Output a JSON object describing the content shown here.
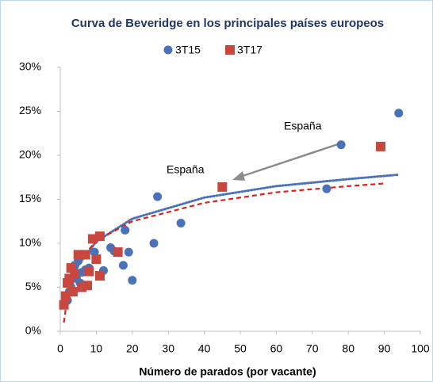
{
  "chart_data": {
    "type": "scatter",
    "title": "Curva de Beveridge en los principales países europeos",
    "x_label": "Número de parados (por vacante)",
    "xlim": [
      0,
      100
    ],
    "xticks": [
      0,
      10,
      20,
      30,
      40,
      50,
      60,
      70,
      80,
      90,
      100
    ],
    "ylim": [
      0,
      30
    ],
    "yticks": [
      {
        "value": 0,
        "label": "0%"
      },
      {
        "value": 5,
        "label": "5%"
      },
      {
        "value": 10,
        "label": "10%"
      },
      {
        "value": 15,
        "label": "15%"
      },
      {
        "value": 20,
        "label": "20%"
      },
      {
        "value": 25,
        "label": "25%"
      },
      {
        "value": 30,
        "label": "30%"
      }
    ],
    "legend": "top",
    "series": [
      {
        "name": "3T15",
        "color": "#4a72b8",
        "marker": "circle",
        "x": [
          94,
          78,
          74,
          27,
          33.5,
          26,
          18,
          19,
          17.5,
          20,
          14,
          15,
          12,
          9.5,
          7,
          6,
          5,
          4,
          4.5,
          3,
          2.5,
          2,
          5.5,
          8
        ],
        "values": [
          24.8,
          21.2,
          16.2,
          15.3,
          12.3,
          10,
          11.5,
          9,
          7.5,
          5.8,
          9.5,
          9.1,
          6.9,
          9,
          7,
          6.7,
          8,
          7.5,
          6,
          5,
          4.5,
          3.5,
          5.5,
          7.2
        ]
      },
      {
        "name": "3T17",
        "color": "#c8473e",
        "marker": "square",
        "x": [
          89,
          45,
          16,
          11,
          9,
          10,
          8,
          11,
          7,
          5,
          3,
          4,
          6,
          7.5,
          2,
          1.5,
          1,
          2.5,
          3.5
        ],
        "values": [
          21,
          16.4,
          9,
          10.8,
          10.5,
          8.2,
          6.8,
          6.3,
          8.7,
          8.7,
          7.2,
          6.5,
          5,
          5.2,
          5.5,
          4,
          3,
          6,
          4.5
        ]
      }
    ],
    "trendlines": [
      {
        "color": "#4a72b8",
        "style": "dotted",
        "x": [
          2,
          5,
          10,
          20,
          40,
          60,
          80,
          94
        ],
        "values": [
          3.5,
          7.5,
          10.2,
          12.8,
          15.2,
          16.5,
          17.3,
          17.8
        ]
      },
      {
        "color": "#d9241c",
        "style": "dashed",
        "x": [
          1,
          2,
          5,
          10,
          20,
          40,
          60,
          80,
          90
        ],
        "values": [
          1,
          4,
          7.8,
          10.3,
          12.5,
          14.6,
          15.8,
          16.5,
          16.8
        ]
      }
    ],
    "annotations": [
      "España",
      "España"
    ]
  }
}
